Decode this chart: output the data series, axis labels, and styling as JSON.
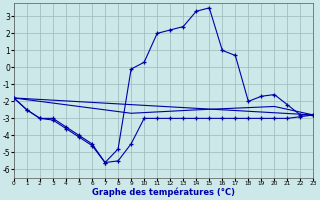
{
  "title": "Graphe des températures (°C)",
  "background_color": "#cce8e8",
  "grid_color": "#99bbbb",
  "line_color": "#0000aa",
  "xlim": [
    0,
    23
  ],
  "ylim": [
    -6.5,
    3.8
  ],
  "xticks": [
    0,
    1,
    2,
    3,
    4,
    5,
    6,
    7,
    8,
    9,
    10,
    11,
    12,
    13,
    14,
    15,
    16,
    17,
    18,
    19,
    20,
    21,
    22,
    23
  ],
  "yticks": [
    -6,
    -5,
    -4,
    -3,
    -2,
    -1,
    0,
    1,
    2,
    3
  ],
  "curves": [
    {
      "x": [
        0,
        1,
        2,
        3,
        4,
        5,
        6,
        7,
        8,
        9,
        10,
        11,
        12,
        13,
        14,
        15,
        16,
        17,
        18,
        19,
        20,
        21,
        22,
        23
      ],
      "y": [
        -1.8,
        -2.5,
        -3.0,
        -3.0,
        -3.5,
        -4.0,
        -4.5,
        -5.6,
        -4.8,
        -0.1,
        0.3,
        2.0,
        2.2,
        2.4,
        3.3,
        3.5,
        1.0,
        0.7,
        -2.0,
        -1.7,
        -1.6,
        -2.2,
        -2.8,
        -2.8
      ],
      "marker": "+"
    },
    {
      "x": [
        0,
        1,
        2,
        3,
        4,
        5,
        6,
        7,
        8,
        9,
        10,
        11,
        12,
        13,
        14,
        15,
        16,
        17,
        18,
        19,
        20,
        21,
        22,
        23
      ],
      "y": [
        -1.8,
        -2.5,
        -3.0,
        -3.1,
        -3.6,
        -4.1,
        -4.6,
        -5.6,
        -5.5,
        -4.5,
        -3.0,
        -3.0,
        -3.0,
        -3.0,
        -3.0,
        -3.0,
        -3.0,
        -3.0,
        -3.0,
        -3.0,
        -3.0,
        -3.0,
        -2.9,
        -2.8
      ],
      "marker": "+"
    },
    {
      "x": [
        0,
        23
      ],
      "y": [
        -1.8,
        -2.8
      ],
      "marker": null
    },
    {
      "x": [
        0,
        9,
        14,
        20,
        23
      ],
      "y": [
        -1.8,
        -2.7,
        -2.5,
        -2.3,
        -2.8
      ],
      "marker": null
    }
  ]
}
